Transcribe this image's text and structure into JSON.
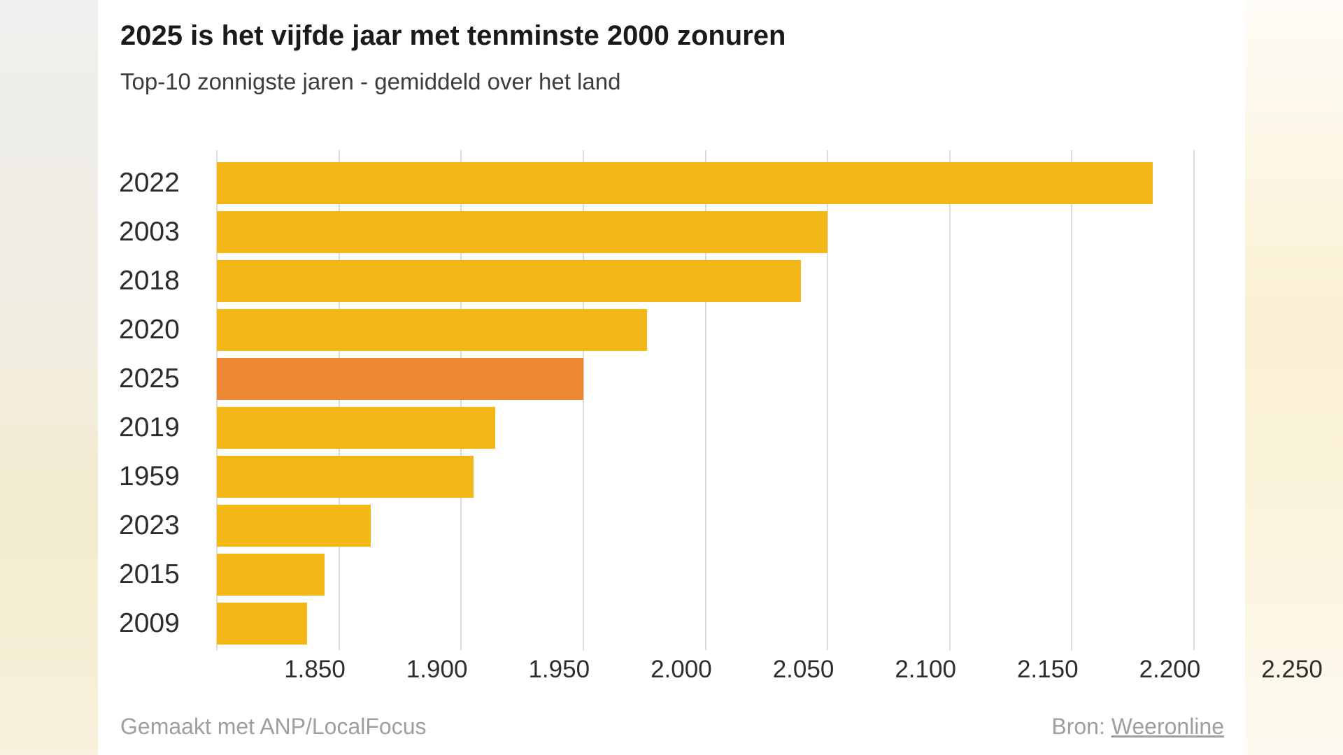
{
  "colors": {
    "bar": "#F4B718",
    "bar_highlight": "#ED8733",
    "gridline": "#DBDBDB",
    "title_text": "#1A1A1A",
    "subtitle_text": "#3C3C3C",
    "axis_text": "#2D2D2D",
    "footer_text": "#9E9E9E"
  },
  "chart_data": {
    "type": "bar",
    "orientation": "horizontal",
    "title": "2025 is het vijfde jaar met tenminste 2000 zonuren",
    "subtitle": "Top-10 zonnigste jaren - gemiddeld over het land",
    "categories": [
      "2022",
      "2003",
      "2018",
      "2020",
      "2025",
      "2019",
      "1959",
      "2023",
      "2015",
      "2009"
    ],
    "values": [
      2233,
      2100,
      2089,
      2026,
      2000,
      1964,
      1955,
      1913,
      1894,
      1887
    ],
    "highlighted_category": "2025",
    "x_ticks": [
      "1.850",
      "1.900",
      "1.950",
      "2.000",
      "2.050",
      "2.100",
      "2.150",
      "2.200",
      "2.250"
    ],
    "xlim": [
      1850,
      2250
    ],
    "grid": true,
    "legend": false
  },
  "footer": {
    "credit": "Gemaakt met ANP/LocalFocus",
    "source_label": "Bron:",
    "source_link": "Weeronline"
  }
}
